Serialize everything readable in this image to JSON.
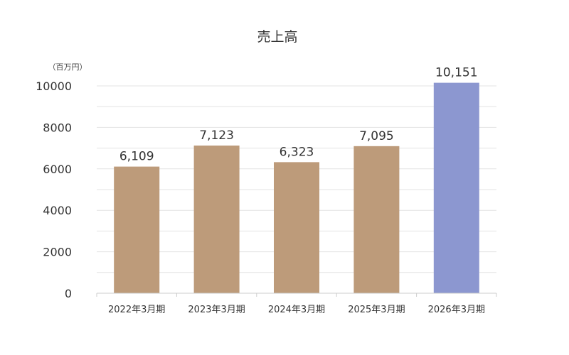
{
  "chart_data": {
    "type": "bar",
    "title": "売上高",
    "unit_label": "（百万円）",
    "categories": [
      "2022年3月期",
      "2023年3月期",
      "2024年3月期",
      "2025年3月期",
      "2026年3月期"
    ],
    "values": [
      6109,
      7123,
      6323,
      7095,
      10151
    ],
    "value_labels": [
      "6,109",
      "7,123",
      "6,323",
      "7,095",
      "10,151"
    ],
    "bar_colors": [
      "#bd9b7a",
      "#bd9b7a",
      "#bd9b7a",
      "#bd9b7a",
      "#8c97d0"
    ],
    "ylim": [
      0,
      10000
    ],
    "ytick_values": [
      0,
      2000,
      4000,
      6000,
      8000,
      10000
    ],
    "ytick_labels": [
      "0",
      "2000",
      "4000",
      "6000",
      "8000",
      "10000"
    ],
    "minor_grid_step": 1000,
    "grid": true,
    "legend": "none"
  }
}
